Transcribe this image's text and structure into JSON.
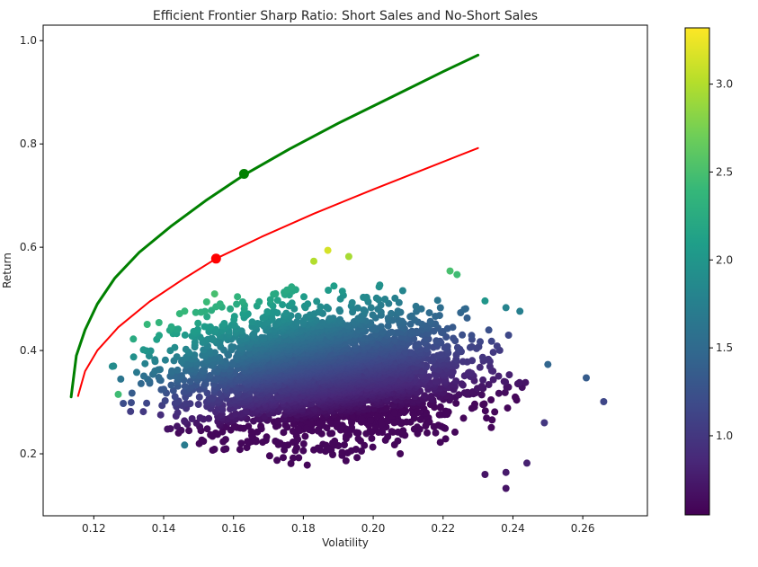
{
  "chart_data": {
    "type": "scatter",
    "title": "Efficient Frontier Sharp Ratio: Short Sales and No-Short Sales",
    "xlabel": "Volatility",
    "ylabel": "Return",
    "xlim": [
      0.1055,
      0.2785
    ],
    "ylim": [
      0.08,
      1.03
    ],
    "xticks": [
      0.12,
      0.14,
      0.16,
      0.18,
      0.2,
      0.22,
      0.24,
      0.26
    ],
    "xtick_labels": [
      "0.12",
      "0.14",
      "0.16",
      "0.18",
      "0.20",
      "0.22",
      "0.24",
      "0.26"
    ],
    "yticks": [
      0.2,
      0.4,
      0.6,
      0.8,
      1.0
    ],
    "ytick_labels": [
      "0.2",
      "0.4",
      "0.6",
      "0.8",
      "1.0"
    ],
    "grid": false,
    "scatter_cloud": {
      "description_only": false,
      "color_by": "sharpe_ratio",
      "x_range": [
        0.127,
        0.266
      ],
      "y_range": [
        0.135,
        0.595
      ],
      "center": [
        0.185,
        0.355
      ],
      "n_points": 3500
    },
    "outliers": [
      {
        "x": 0.187,
        "y": 0.594,
        "c": 3.15
      },
      {
        "x": 0.193,
        "y": 0.582,
        "c": 2.95
      },
      {
        "x": 0.183,
        "y": 0.573,
        "c": 3.0
      },
      {
        "x": 0.261,
        "y": 0.347,
        "c": 1.35
      },
      {
        "x": 0.266,
        "y": 0.301,
        "c": 1.15
      },
      {
        "x": 0.25,
        "y": 0.373,
        "c": 1.45
      },
      {
        "x": 0.242,
        "y": 0.476,
        "c": 1.75
      },
      {
        "x": 0.238,
        "y": 0.483,
        "c": 1.8
      },
      {
        "x": 0.238,
        "y": 0.133,
        "c": 0.7
      },
      {
        "x": 0.238,
        "y": 0.164,
        "c": 0.75
      },
      {
        "x": 0.232,
        "y": 0.16,
        "c": 0.7
      },
      {
        "x": 0.244,
        "y": 0.182,
        "c": 0.8
      },
      {
        "x": 0.249,
        "y": 0.26,
        "c": 1.0
      },
      {
        "x": 0.127,
        "y": 0.315,
        "c": 2.45
      },
      {
        "x": 0.146,
        "y": 0.217,
        "c": 1.7
      },
      {
        "x": 0.222,
        "y": 0.554,
        "c": 2.5
      },
      {
        "x": 0.224,
        "y": 0.547,
        "c": 2.45
      },
      {
        "x": 0.232,
        "y": 0.496,
        "c": 2.0
      }
    ],
    "series": [
      {
        "color": "#008000",
        "line_width": 3,
        "x": [
          0.1135,
          0.115,
          0.1175,
          0.121,
          0.126,
          0.133,
          0.142,
          0.152,
          0.163,
          0.176,
          0.19,
          0.205,
          0.22,
          0.23
        ],
        "y": [
          0.31,
          0.39,
          0.44,
          0.49,
          0.54,
          0.59,
          0.64,
          0.69,
          0.74,
          0.79,
          0.84,
          0.89,
          0.94,
          0.972
        ]
      },
      {
        "color": "#ff0000",
        "line_width": 2,
        "x": [
          0.1155,
          0.1175,
          0.121,
          0.127,
          0.136,
          0.146,
          0.155,
          0.168,
          0.183,
          0.2,
          0.215,
          0.23
        ],
        "y": [
          0.312,
          0.36,
          0.4,
          0.445,
          0.495,
          0.54,
          0.578,
          0.62,
          0.665,
          0.712,
          0.752,
          0.792
        ]
      }
    ],
    "highlighted_points": [
      {
        "x": 0.163,
        "y": 0.742,
        "color": "#008000"
      },
      {
        "x": 0.155,
        "y": 0.578,
        "color": "#ff0000"
      }
    ],
    "colorbar": {
      "min": 0.55,
      "max": 3.32,
      "ticks": [
        1.0,
        1.5,
        2.0,
        2.5,
        3.0
      ],
      "tick_labels": [
        "1.0",
        "1.5",
        "2.0",
        "2.5",
        "3.0"
      ],
      "colormap": "viridis",
      "colormap_stops": [
        "#440154",
        "#482878",
        "#3e4989",
        "#31688e",
        "#26828e",
        "#1f9e89",
        "#35b779",
        "#6ece58",
        "#b5de2b",
        "#fde725"
      ]
    }
  }
}
